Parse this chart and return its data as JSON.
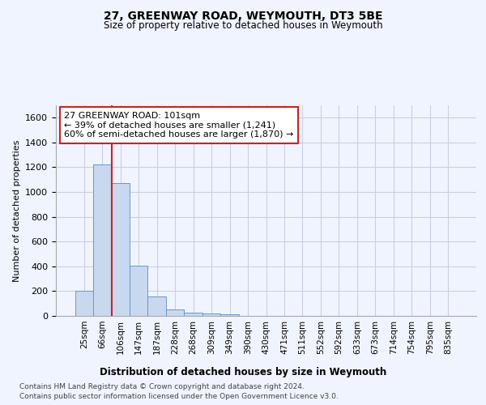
{
  "title": "27, GREENWAY ROAD, WEYMOUTH, DT3 5BE",
  "subtitle": "Size of property relative to detached houses in Weymouth",
  "xlabel": "Distribution of detached houses by size in Weymouth",
  "ylabel": "Number of detached properties",
  "categories": [
    "25sqm",
    "66sqm",
    "106sqm",
    "147sqm",
    "187sqm",
    "228sqm",
    "268sqm",
    "309sqm",
    "349sqm",
    "390sqm",
    "430sqm",
    "471sqm",
    "511sqm",
    "552sqm",
    "592sqm",
    "633sqm",
    "673sqm",
    "714sqm",
    "754sqm",
    "795sqm",
    "835sqm"
  ],
  "values": [
    205,
    1225,
    1075,
    405,
    160,
    50,
    25,
    20,
    15,
    0,
    0,
    0,
    0,
    0,
    0,
    0,
    0,
    0,
    0,
    0,
    0
  ],
  "bar_color": "#c8d8ee",
  "bar_edge_color": "#6699cc",
  "highlight_line_color": "#cc2222",
  "annotation_line1": "27 GREENWAY ROAD: 101sqm",
  "annotation_line2": "← 39% of detached houses are smaller (1,241)",
  "annotation_line3": "60% of semi-detached houses are larger (1,870) →",
  "annotation_box_color": "white",
  "annotation_box_edge_color": "#cc2222",
  "ylim": [
    0,
    1700
  ],
  "yticks": [
    0,
    200,
    400,
    600,
    800,
    1000,
    1200,
    1400,
    1600
  ],
  "footer_line1": "Contains HM Land Registry data © Crown copyright and database right 2024.",
  "footer_line2": "Contains public sector information licensed under the Open Government Licence v3.0.",
  "bg_color": "#f0f4ff",
  "grid_color": "#c8d0e0"
}
